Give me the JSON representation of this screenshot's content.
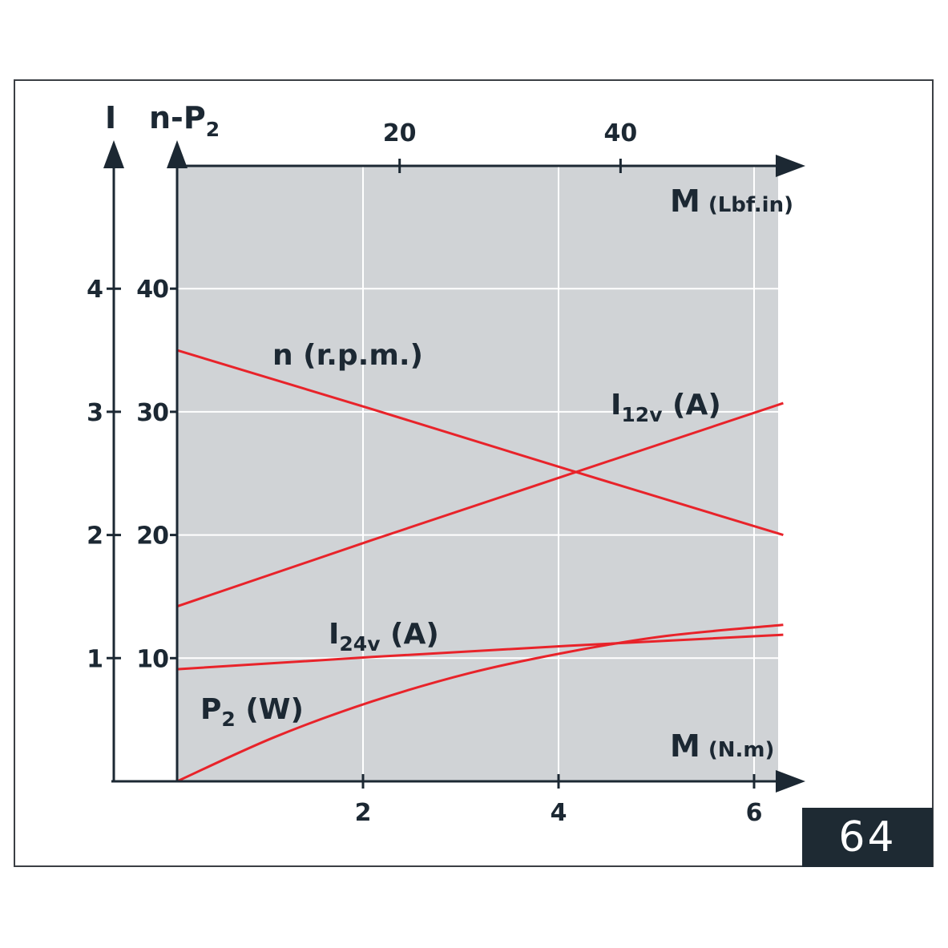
{
  "figure_number": "64",
  "chart_data": {
    "type": "line",
    "x_axis_bottom": {
      "label": "M",
      "unit": "(N.m)",
      "ticks": [
        "2",
        "4",
        "6"
      ],
      "tick_values": [
        2,
        4,
        6
      ],
      "range": [
        0,
        6.2
      ]
    },
    "x_axis_top": {
      "label": "M",
      "unit": "(Lbf.in)",
      "ticks": [
        "20",
        "40"
      ],
      "tick_values": [
        20,
        40
      ]
    },
    "y_axis_inner": {
      "label": "n-P",
      "label_sub": "2",
      "ticks": [
        "10",
        "20",
        "30",
        "40"
      ],
      "tick_values": [
        10,
        20,
        30,
        40
      ],
      "range": [
        0,
        50
      ]
    },
    "y_axis_outer": {
      "label": "I",
      "ticks": [
        "1",
        "2",
        "3",
        "4"
      ],
      "tick_values": [
        1,
        2,
        3,
        4
      ],
      "range": [
        0,
        5
      ]
    },
    "grid": true,
    "series": [
      {
        "label_main": "n (r.p.m.)",
        "label_sub": "",
        "label_tail": "",
        "color": "#e8232a",
        "axis": "inner",
        "x": [
          0,
          2,
          4,
          6.2
        ],
        "y": [
          35.0,
          30.2,
          25.3,
          20.0
        ]
      },
      {
        "label_main": "I",
        "label_sub": "12v",
        "label_tail": " (A)",
        "color": "#e8232a",
        "axis": "outer",
        "x": [
          0,
          2,
          4,
          6.2
        ],
        "y": [
          1.42,
          1.96,
          2.49,
          3.07
        ]
      },
      {
        "label_main": "I",
        "label_sub": "24v",
        "label_tail": " (A)",
        "color": "#e8232a",
        "axis": "outer",
        "x": [
          0,
          2,
          4,
          6.2
        ],
        "y": [
          0.91,
          1.01,
          1.1,
          1.19
        ]
      },
      {
        "label_main": "P",
        "label_sub": "2",
        "label_tail": " (W)",
        "color": "#e8232a",
        "axis": "inner",
        "x": [
          0,
          1,
          2,
          3,
          4,
          5,
          6.2
        ],
        "y": [
          0.0,
          3.6,
          6.5,
          8.8,
          10.5,
          11.8,
          12.7
        ]
      }
    ]
  }
}
